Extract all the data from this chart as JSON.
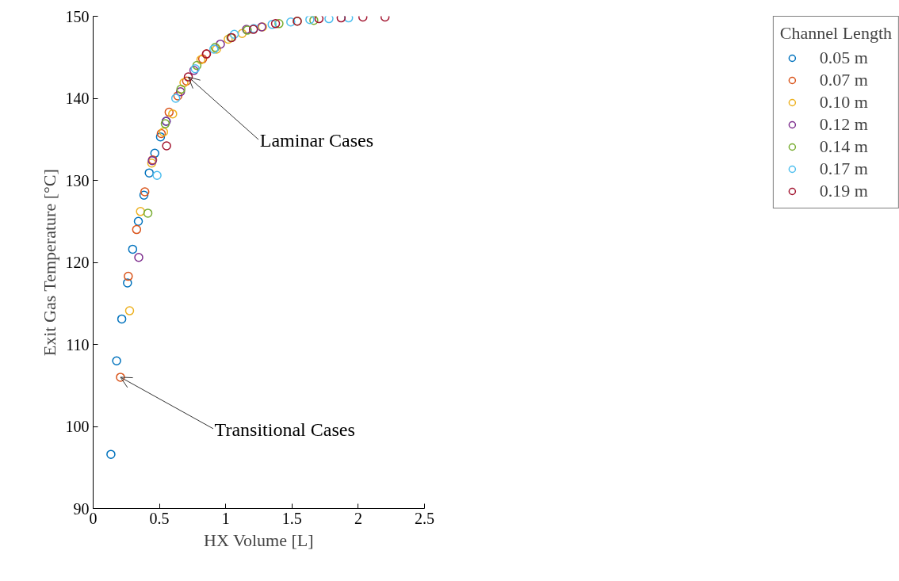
{
  "chart_data": {
    "type": "scatter",
    "xlabel": "HX Volume [L]",
    "ylabel": "Exit Gas Temperature [°C]",
    "legend_title": "Channel Length",
    "legend": "top right",
    "grid": false,
    "marker": "circle",
    "xlim": [
      0,
      2.5
    ],
    "ylim": [
      90,
      150
    ],
    "xticks": [
      0,
      0.5,
      1,
      1.5,
      2,
      2.5
    ],
    "yticks": [
      90,
      100,
      110,
      120,
      130,
      140,
      150
    ],
    "series": [
      {
        "name": "0.05 m",
        "color": "#0072bd",
        "x": [
          0.134,
          0.177,
          0.216,
          0.259,
          0.298,
          0.341,
          0.383,
          0.423,
          0.465,
          0.508,
          0.551
        ],
        "values": [
          96.6,
          108.0,
          113.1,
          117.5,
          121.6,
          125.0,
          128.2,
          130.9,
          133.3,
          135.3,
          137.2
        ]
      },
      {
        "name": "0.07 m",
        "color": "#d95319",
        "x": [
          0.206,
          0.265,
          0.328,
          0.39,
          0.449,
          0.514,
          0.573,
          0.639,
          0.705,
          0.826,
          0.855
        ],
        "values": [
          106.0,
          118.3,
          124.0,
          128.6,
          132.5,
          135.7,
          138.3,
          140.3,
          142.1,
          144.8,
          145.4
        ]
      },
      {
        "name": "0.10 m",
        "color": "#edb120",
        "x": [
          0.275,
          0.357,
          0.442,
          0.531,
          0.6,
          0.685,
          0.813,
          0.931,
          1.019,
          1.124,
          1.278
        ],
        "values": [
          114.1,
          126.2,
          132.1,
          135.9,
          138.1,
          141.9,
          144.7,
          146.0,
          147.2,
          147.9,
          148.7
        ]
      },
      {
        "name": "0.12 m",
        "color": "#7e2f8e",
        "x": [
          0.344,
          0.446,
          0.551,
          0.659,
          0.76,
          0.96,
          1.157,
          1.271
        ],
        "values": [
          120.6,
          132.4,
          137.2,
          140.8,
          143.4,
          146.6,
          148.4,
          148.7
        ]
      },
      {
        "name": "0.14 m",
        "color": "#77ac30",
        "x": [
          0.413,
          0.544,
          0.662,
          0.783,
          0.921,
          1.039,
          1.163,
          1.402,
          1.54,
          1.665
        ],
        "values": [
          126.0,
          136.9,
          141.1,
          144.0,
          146.2,
          147.4,
          148.3,
          149.1,
          149.4,
          149.5
        ]
      },
      {
        "name": "0.17 m",
        "color": "#4dbeee",
        "x": [
          0.482,
          0.623,
          0.77,
          0.911,
          1.065,
          1.212,
          1.35,
          1.491,
          1.635,
          1.779,
          1.927
        ],
        "values": [
          130.6,
          140.0,
          143.6,
          146.0,
          147.8,
          148.5,
          149.0,
          149.3,
          149.6,
          149.7,
          149.8
        ]
      },
      {
        "name": "0.19 m",
        "color": "#a2142f",
        "x": [
          0.554,
          0.718,
          0.855,
          1.045,
          1.209,
          1.376,
          1.54,
          1.704,
          1.871,
          2.035,
          2.202
        ],
        "values": [
          134.2,
          142.6,
          145.4,
          147.4,
          148.4,
          149.1,
          149.4,
          149.7,
          149.8,
          149.9,
          149.9
        ]
      }
    ],
    "annotations": [
      {
        "text": "Laminar Cases",
        "x": 0.718,
        "y": 142.6
      },
      {
        "text": "Transitional Cases",
        "x": 0.206,
        "y": 106.0
      }
    ]
  }
}
